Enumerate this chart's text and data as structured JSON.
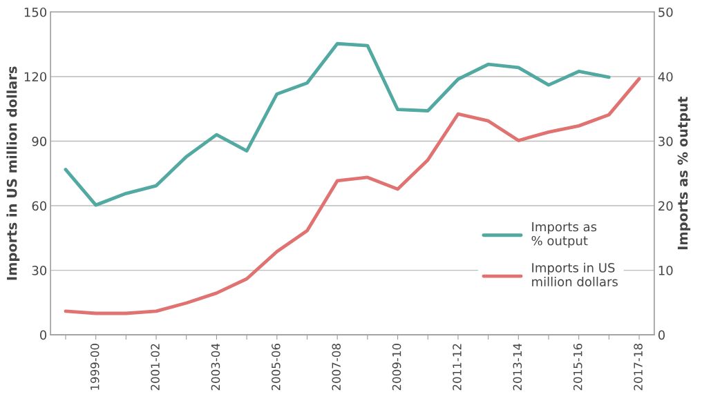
{
  "chart_data": {
    "type": "line",
    "ylabel": "Imports in US million dollars",
    "y2label": "Imports as % output",
    "categories": [
      null,
      "1999-00",
      null,
      "2001-02",
      null,
      "2003-04",
      null,
      "2005-06",
      null,
      "2007-08",
      null,
      "2009-10",
      null,
      "2011-12",
      null,
      "2013-14",
      null,
      "2015-16",
      null,
      "2017-18"
    ],
    "series": [
      {
        "name": "Imports as\n% output",
        "color": "#52a9a1",
        "axis": "y2",
        "values": [
          25.6,
          20.1,
          21.9,
          23.1,
          27.6,
          31.0,
          28.5,
          37.3,
          39.0,
          45.1,
          44.8,
          34.9,
          34.7,
          39.6,
          41.9,
          41.4,
          38.7,
          40.8,
          39.9,
          null
        ]
      },
      {
        "name": "Imports in US\nmillion dollars",
        "color": "#e07272",
        "values": [
          11,
          10,
          10,
          11,
          14.8,
          19.4,
          26,
          38.7,
          48.4,
          71.6,
          73.2,
          67.7,
          81.3,
          102.6,
          99.4,
          90.3,
          94.2,
          97.1,
          102.3,
          119
        ]
      }
    ],
    "ylim": [
      0,
      150
    ],
    "yticks": [
      0,
      30,
      60,
      90,
      120,
      150
    ],
    "y2lim": [
      0,
      50
    ],
    "y2ticks": [
      0,
      10,
      20,
      30,
      40,
      50
    ],
    "grid": "y",
    "legend": "bottom right",
    "marker": "none",
    "line_style": "solid"
  }
}
